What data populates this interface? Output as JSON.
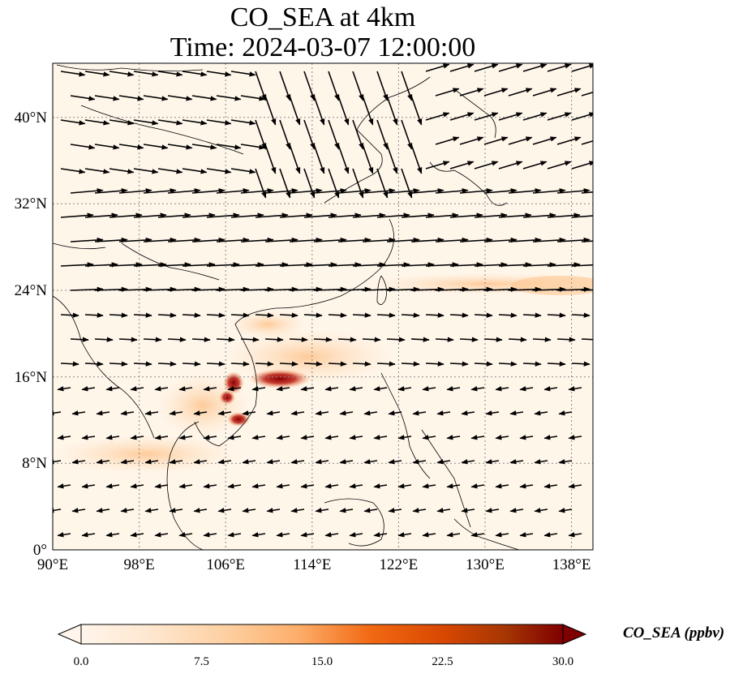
{
  "title": {
    "line1": "CO_SEA at 4km",
    "line2": "Time: 2024-03-07 12:00:00"
  },
  "map": {
    "lon_range": [
      90,
      140
    ],
    "lat_range": [
      0,
      45
    ],
    "x_ticks": [
      "90°E",
      "98°E",
      "106°E",
      "114°E",
      "122°E",
      "130°E",
      "138°E"
    ],
    "y_ticks": [
      "0°",
      "8°N",
      "16°N",
      "24°N",
      "32°N",
      "40°N"
    ],
    "gridlines": "dotted",
    "background_color": "#fff6ea",
    "plume_color_high": "#8b0000"
  },
  "colorbar": {
    "label": "CO_SEA (ppbv)",
    "min": 0.0,
    "max": 30.0,
    "ticks": [
      "0.0",
      "7.5",
      "15.0",
      "22.5",
      "30.0"
    ],
    "colors": [
      "#fff5eb",
      "#fee6ce",
      "#fdd0a2",
      "#fdae6b",
      "#fd8d3c",
      "#f16913",
      "#d94801",
      "#a63603",
      "#7f0000"
    ],
    "extend": "both"
  },
  "chart_data": {
    "type": "heatmap",
    "title": "CO_SEA at 4km\nTime: 2024-03-07 12:00:00",
    "variable": "CO_SEA (ppbv)",
    "x_range": [
      90,
      140
    ],
    "y_range": [
      0,
      45
    ],
    "plume_hotspots": [
      {
        "lon": 111.5,
        "lat": 16.0,
        "value": 28
      },
      {
        "lon": 106.5,
        "lat": 15.5,
        "value": 26
      },
      {
        "lon": 107.5,
        "lat": 12.5,
        "value": 25
      },
      {
        "lon": 106.0,
        "lat": 14.0,
        "value": 22
      }
    ],
    "wind_vectors": "overlaid quiver arrows"
  }
}
